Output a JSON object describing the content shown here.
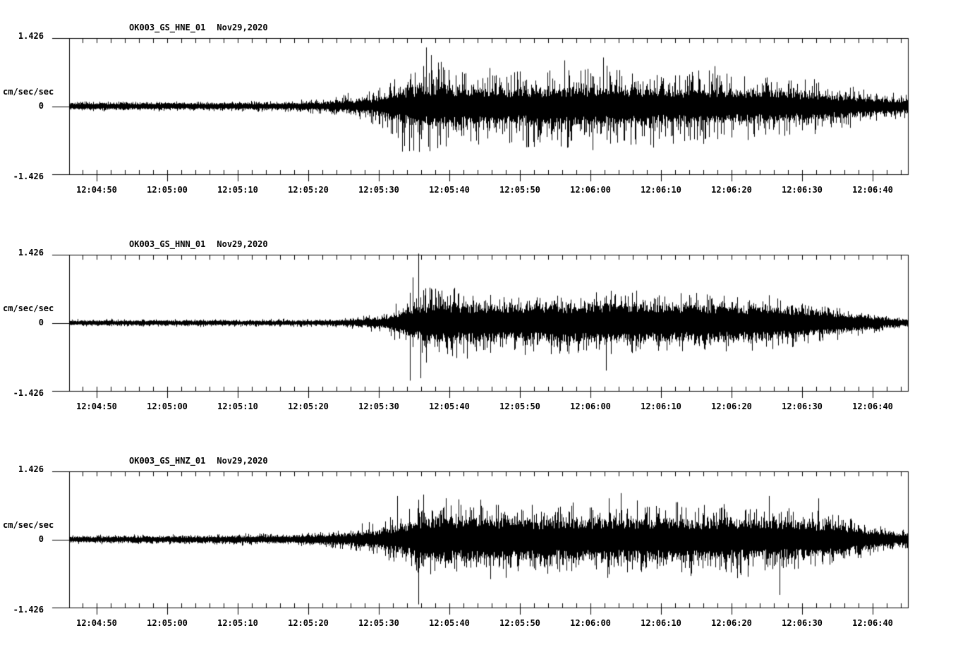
{
  "figure": {
    "background": "#ffffff",
    "trace_color": "#000000",
    "y_axis": {
      "top_label": "1.426",
      "zero_label": "0",
      "bottom_label": "-1.426",
      "units_label": "cm/sec/sec"
    },
    "x_tick_labels": [
      "12:04:50",
      "12:05:00",
      "12:05:10",
      "12:05:20",
      "12:05:30",
      "12:05:40",
      "12:05:50",
      "12:06:00",
      "12:06:10",
      "12:06:20",
      "12:06:30",
      "12:06:40"
    ]
  },
  "chart_data": [
    {
      "type": "line",
      "title": "OK003_GS_HNE_01",
      "date": "Nov29,2020",
      "ylabel": "cm/sec/sec",
      "ylim": [
        -1.426,
        1.426
      ],
      "yticks": [
        -1.426,
        0,
        1.426
      ],
      "x_start": "12:04:46",
      "x_end": "12:06:45",
      "major_tick_interval_s": 10,
      "minor_tick_interval_s": 2,
      "envelope": {
        "description": "approx amplitude envelope, cm/sec/sec vs seconds from left edge",
        "core": [
          [
            0,
            0.07
          ],
          [
            20,
            0.065
          ],
          [
            30,
            0.07
          ],
          [
            36,
            0.09
          ],
          [
            40,
            0.12
          ],
          [
            43,
            0.15
          ],
          [
            45,
            0.25
          ],
          [
            47,
            0.34
          ],
          [
            50,
            0.42
          ],
          [
            54,
            0.4
          ],
          [
            60,
            0.36
          ],
          [
            68,
            0.38
          ],
          [
            76,
            0.39
          ],
          [
            84,
            0.36
          ],
          [
            92,
            0.34
          ],
          [
            100,
            0.32
          ],
          [
            106,
            0.27
          ],
          [
            112,
            0.2
          ],
          [
            116,
            0.16
          ],
          [
            119,
            0.14
          ]
        ],
        "peak": [
          [
            0,
            0.12
          ],
          [
            20,
            0.11
          ],
          [
            30,
            0.13
          ],
          [
            36,
            0.18
          ],
          [
            40,
            0.3
          ],
          [
            43,
            0.45
          ],
          [
            45,
            0.65
          ],
          [
            47,
            0.9
          ],
          [
            49,
            1.1
          ],
          [
            51,
            1.18
          ],
          [
            54,
            0.95
          ],
          [
            58,
            0.88
          ],
          [
            64,
            0.92
          ],
          [
            70,
            0.98
          ],
          [
            76,
            1.0
          ],
          [
            82,
            0.9
          ],
          [
            88,
            0.88
          ],
          [
            94,
            0.82
          ],
          [
            100,
            0.76
          ],
          [
            106,
            0.62
          ],
          [
            112,
            0.42
          ],
          [
            116,
            0.32
          ],
          [
            119,
            0.26
          ]
        ]
      },
      "notable_spikes": [
        [
          50.6,
          1.23
        ],
        [
          47.2,
          -0.95
        ],
        [
          52.2,
          -0.88
        ],
        [
          70.2,
          0.96
        ],
        [
          75.7,
          1.02
        ],
        [
          74.2,
          -0.92
        ]
      ],
      "seed": 42
    },
    {
      "type": "line",
      "title": "OK003_GS_HNN_01",
      "date": "Nov29,2020",
      "ylabel": "cm/sec/sec",
      "ylim": [
        -1.426,
        1.426
      ],
      "yticks": [
        -1.426,
        0,
        1.426
      ],
      "x_start": "12:04:46",
      "x_end": "12:06:45",
      "major_tick_interval_s": 10,
      "minor_tick_interval_s": 2,
      "envelope": {
        "description": "approx amplitude envelope, cm/sec/sec vs seconds from left edge",
        "core": [
          [
            0,
            0.05
          ],
          [
            30,
            0.05
          ],
          [
            38,
            0.06
          ],
          [
            42,
            0.08
          ],
          [
            45,
            0.13
          ],
          [
            47,
            0.22
          ],
          [
            49,
            0.33
          ],
          [
            51,
            0.42
          ],
          [
            55,
            0.4
          ],
          [
            62,
            0.38
          ],
          [
            70,
            0.4
          ],
          [
            78,
            0.41
          ],
          [
            86,
            0.39
          ],
          [
            94,
            0.37
          ],
          [
            100,
            0.34
          ],
          [
            106,
            0.27
          ],
          [
            112,
            0.17
          ],
          [
            116,
            0.1
          ],
          [
            119,
            0.07
          ]
        ],
        "peak": [
          [
            0,
            0.09
          ],
          [
            30,
            0.09
          ],
          [
            38,
            0.11
          ],
          [
            42,
            0.17
          ],
          [
            45,
            0.3
          ],
          [
            47,
            0.52
          ],
          [
            49,
            0.85
          ],
          [
            51,
            1.0
          ],
          [
            53,
            0.88
          ],
          [
            58,
            0.78
          ],
          [
            64,
            0.72
          ],
          [
            70,
            0.74
          ],
          [
            76,
            0.72
          ],
          [
            82,
            0.72
          ],
          [
            88,
            0.7
          ],
          [
            94,
            0.66
          ],
          [
            100,
            0.62
          ],
          [
            106,
            0.46
          ],
          [
            112,
            0.3
          ],
          [
            116,
            0.16
          ],
          [
            119,
            0.11
          ]
        ]
      },
      "notable_spikes": [
        [
          49.5,
          1.45
        ],
        [
          48.3,
          -1.21
        ],
        [
          49.8,
          -1.16
        ],
        [
          48.7,
          0.95
        ],
        [
          76.1,
          -1.0
        ]
      ],
      "seed": 1337
    },
    {
      "type": "line",
      "title": "OK003_GS_HNZ_01",
      "date": "Nov29,2020",
      "ylabel": "cm/sec/sec",
      "ylim": [
        -1.426,
        1.426
      ],
      "yticks": [
        -1.426,
        0,
        1.426
      ],
      "x_start": "12:04:46",
      "x_end": "12:06:45",
      "major_tick_interval_s": 10,
      "minor_tick_interval_s": 2,
      "envelope": {
        "description": "approx amplitude envelope, cm/sec/sec vs seconds from left edge",
        "core": [
          [
            0,
            0.06
          ],
          [
            20,
            0.07
          ],
          [
            30,
            0.08
          ],
          [
            36,
            0.1
          ],
          [
            40,
            0.13
          ],
          [
            44,
            0.18
          ],
          [
            46,
            0.25
          ],
          [
            48,
            0.33
          ],
          [
            50,
            0.42
          ],
          [
            53,
            0.46
          ],
          [
            58,
            0.44
          ],
          [
            66,
            0.42
          ],
          [
            74,
            0.44
          ],
          [
            82,
            0.43
          ],
          [
            90,
            0.42
          ],
          [
            98,
            0.41
          ],
          [
            104,
            0.38
          ],
          [
            108,
            0.32
          ],
          [
            112,
            0.24
          ],
          [
            116,
            0.15
          ],
          [
            119,
            0.11
          ]
        ],
        "peak": [
          [
            0,
            0.1
          ],
          [
            20,
            0.12
          ],
          [
            30,
            0.15
          ],
          [
            36,
            0.2
          ],
          [
            40,
            0.28
          ],
          [
            44,
            0.45
          ],
          [
            46,
            0.6
          ],
          [
            48,
            0.78
          ],
          [
            50,
            0.9
          ],
          [
            53,
            0.95
          ],
          [
            58,
            0.88
          ],
          [
            66,
            0.82
          ],
          [
            74,
            0.86
          ],
          [
            82,
            0.88
          ],
          [
            90,
            0.86
          ],
          [
            98,
            0.84
          ],
          [
            104,
            0.75
          ],
          [
            108,
            0.6
          ],
          [
            112,
            0.45
          ],
          [
            116,
            0.3
          ],
          [
            119,
            0.22
          ]
        ]
      },
      "notable_spikes": [
        [
          49.5,
          -1.36
        ],
        [
          46.5,
          0.91
        ],
        [
          50.2,
          0.94
        ],
        [
          78.2,
          0.97
        ],
        [
          99.2,
          0.91
        ],
        [
          106.2,
          0.86
        ],
        [
          100.7,
          -1.16
        ]
      ],
      "seed": 2024
    }
  ]
}
